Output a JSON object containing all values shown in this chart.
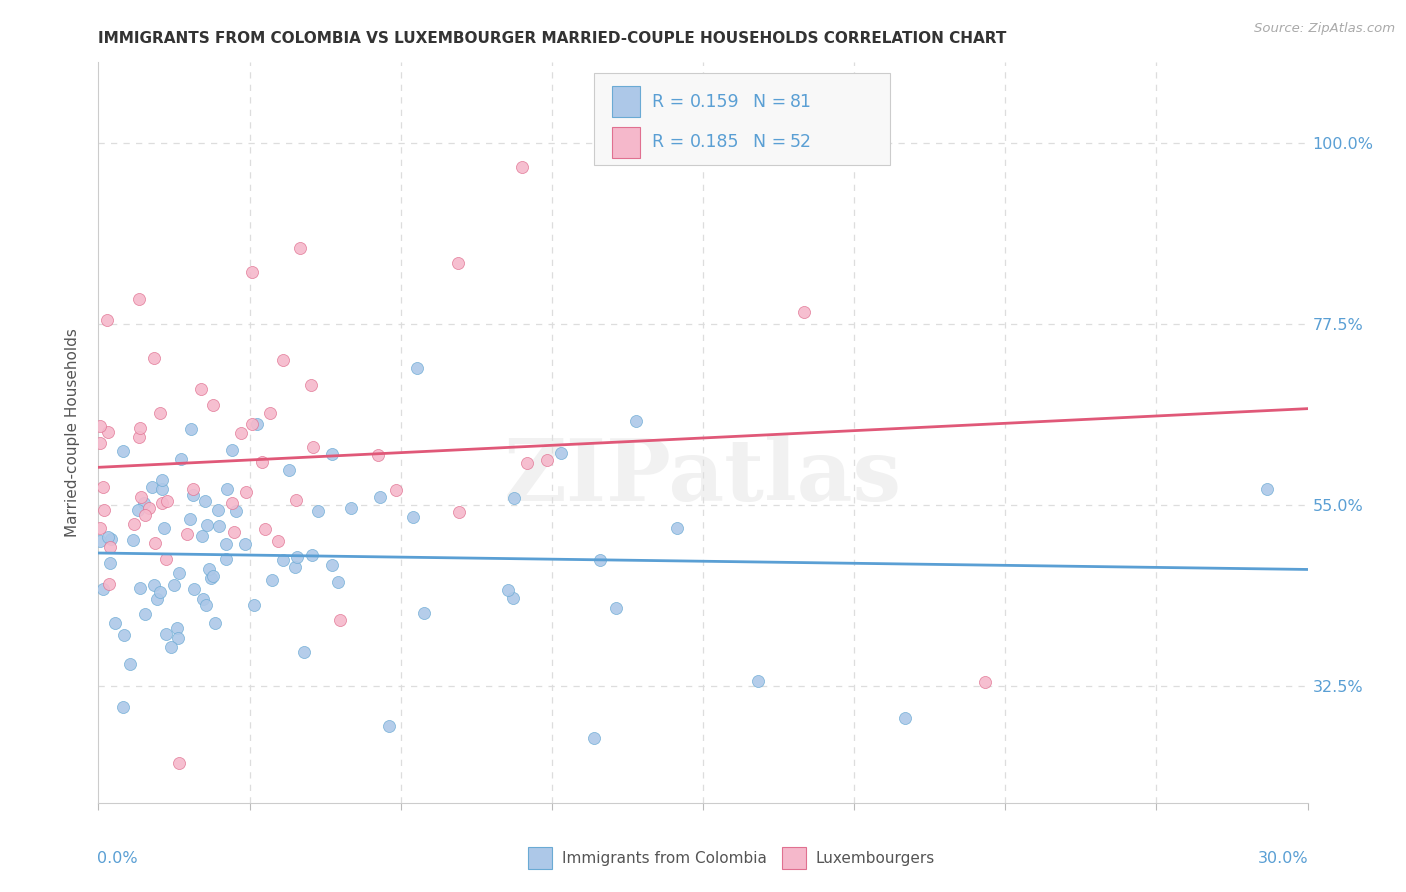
{
  "title": "IMMIGRANTS FROM COLOMBIA VS LUXEMBOURGER MARRIED-COUPLE HOUSEHOLDS CORRELATION CHART",
  "source": "Source: ZipAtlas.com",
  "ylabel": "Married-couple Households",
  "xlim": [
    0.0,
    30.0
  ],
  "ylim": [
    18.0,
    110.0
  ],
  "ytick_values": [
    32.5,
    55.0,
    77.5,
    100.0
  ],
  "ytick_labels": [
    "32.5%",
    "55.0%",
    "77.5%",
    "100.0%"
  ],
  "xtick_values": [
    0.0,
    3.75,
    7.5,
    11.25,
    15.0,
    18.75,
    22.5,
    26.25,
    30.0
  ],
  "colombia_R": 0.159,
  "colombia_N": 81,
  "luxembourger_R": 0.185,
  "luxembourger_N": 52,
  "colombia_face_color": "#adc8e8",
  "luxembourger_face_color": "#f5b8cb",
  "colombia_edge_color": "#6aaad4",
  "luxembourger_edge_color": "#e07090",
  "colombia_line_color": "#5a9fd4",
  "luxembourger_line_color": "#e05878",
  "legend_text_color": "#5a9fd4",
  "axis_tick_color": "#5a9fd4",
  "grid_color": "#dddddd",
  "background_color": "#ffffff",
  "title_color": "#333333",
  "title_fontsize": 11,
  "source_color": "#aaaaaa",
  "ylabel_color": "#555555",
  "watermark": "ZIPatlas",
  "legend_box_color": "#f5f5f5",
  "legend_border_color": "#cccccc",
  "bottom_legend_text_color": "#555555"
}
